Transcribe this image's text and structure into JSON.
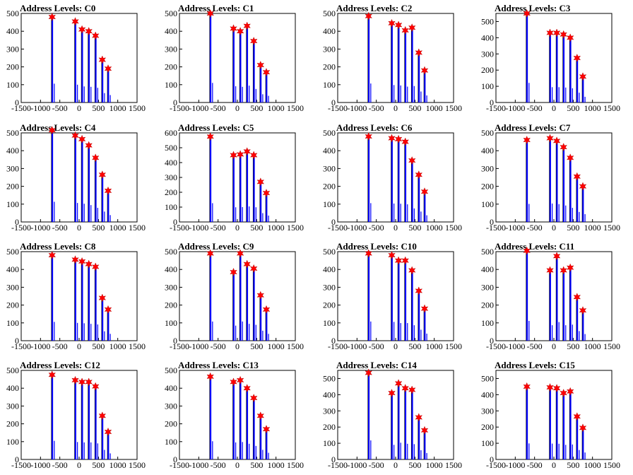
{
  "colors": {
    "hist": "#0000ff",
    "marker": "#ff0000",
    "frame": "#000000"
  },
  "chart_data": [
    {
      "type": "bar",
      "title": "Address Levels: C0",
      "xlim": [
        -1500,
        1500
      ],
      "ylim": [
        0,
        500
      ],
      "xticks": [
        "-1500",
        "-1000",
        "-500",
        "0",
        "500",
        "1000",
        "1500"
      ],
      "yticks": [
        "0",
        "100",
        "200",
        "300",
        "400",
        "500"
      ],
      "peaks": [
        {
          "x": -700,
          "y": 480
        },
        {
          "x": -100,
          "y": 455
        },
        {
          "x": 75,
          "y": 410
        },
        {
          "x": 250,
          "y": 400
        },
        {
          "x": 425,
          "y": 375
        },
        {
          "x": 600,
          "y": 240
        },
        {
          "x": 750,
          "y": 190
        }
      ]
    },
    {
      "type": "bar",
      "title": "Address Levels: C1",
      "xlim": [
        -1500,
        1500
      ],
      "ylim": [
        0,
        500
      ],
      "xticks": [
        "-1500",
        "-1000",
        "-500",
        "0",
        "500",
        "1000",
        "1500"
      ],
      "yticks": [
        "0",
        "100",
        "200",
        "300",
        "400",
        "500"
      ],
      "peaks": [
        {
          "x": -700,
          "y": 500
        },
        {
          "x": -100,
          "y": 415
        },
        {
          "x": 75,
          "y": 400
        },
        {
          "x": 250,
          "y": 430
        },
        {
          "x": 425,
          "y": 345
        },
        {
          "x": 600,
          "y": 210
        },
        {
          "x": 750,
          "y": 170
        }
      ]
    },
    {
      "type": "bar",
      "title": "Address Levels: C2",
      "xlim": [
        -1500,
        1500
      ],
      "ylim": [
        0,
        500
      ],
      "xticks": [
        "-1500",
        "-1000",
        "-500",
        "0",
        "500",
        "1000",
        "1500"
      ],
      "yticks": [
        "0",
        "100",
        "200",
        "300",
        "400",
        "500"
      ],
      "peaks": [
        {
          "x": -700,
          "y": 485
        },
        {
          "x": -100,
          "y": 445
        },
        {
          "x": 75,
          "y": 435
        },
        {
          "x": 250,
          "y": 405
        },
        {
          "x": 425,
          "y": 420
        },
        {
          "x": 600,
          "y": 280
        },
        {
          "x": 750,
          "y": 180
        }
      ]
    },
    {
      "type": "bar",
      "title": "Address Levels: C3",
      "xlim": [
        -1500,
        1500
      ],
      "ylim": [
        0,
        550
      ],
      "xticks": [
        "-1500",
        "-1000",
        "-500",
        "0",
        "500",
        "1000",
        "1500"
      ],
      "yticks": [
        "0",
        "100",
        "200",
        "300",
        "400",
        "500"
      ],
      "peaks": [
        {
          "x": -700,
          "y": 550
        },
        {
          "x": -100,
          "y": 430
        },
        {
          "x": 75,
          "y": 430
        },
        {
          "x": 250,
          "y": 420
        },
        {
          "x": 425,
          "y": 400
        },
        {
          "x": 600,
          "y": 275
        },
        {
          "x": 750,
          "y": 160
        }
      ]
    },
    {
      "type": "bar",
      "title": "Address Levels: C4",
      "xlim": [
        -1500,
        1500
      ],
      "ylim": [
        0,
        500
      ],
      "xticks": [
        "-1500",
        "-1000",
        "-500",
        "0",
        "500",
        "1000",
        "1500"
      ],
      "yticks": [
        "0",
        "100",
        "200",
        "300",
        "400",
        "500"
      ],
      "peaks": [
        {
          "x": -700,
          "y": 515
        },
        {
          "x": -100,
          "y": 485
        },
        {
          "x": 75,
          "y": 465
        },
        {
          "x": 250,
          "y": 430
        },
        {
          "x": 425,
          "y": 360
        },
        {
          "x": 600,
          "y": 265
        },
        {
          "x": 750,
          "y": 175
        }
      ]
    },
    {
      "type": "bar",
      "title": "Address Levels: C5",
      "xlim": [
        -1500,
        1500
      ],
      "ylim": [
        0,
        600
      ],
      "xticks": [
        "-1500",
        "-1000",
        "-500",
        "0",
        "500",
        "1000",
        "1500"
      ],
      "yticks": [
        "0",
        "100",
        "200",
        "300",
        "400",
        "500",
        "600"
      ],
      "peaks": [
        {
          "x": -700,
          "y": 575
        },
        {
          "x": -100,
          "y": 450
        },
        {
          "x": 75,
          "y": 455
        },
        {
          "x": 250,
          "y": 475
        },
        {
          "x": 425,
          "y": 450
        },
        {
          "x": 600,
          "y": 270
        },
        {
          "x": 750,
          "y": 195
        }
      ]
    },
    {
      "type": "bar",
      "title": "Address Levels: C6",
      "xlim": [
        -1500,
        1500
      ],
      "ylim": [
        0,
        500
      ],
      "xticks": [
        "-1500",
        "-1000",
        "-500",
        "0",
        "500",
        "1000",
        "1500"
      ],
      "yticks": [
        "0",
        "100",
        "200",
        "300",
        "400",
        "500"
      ],
      "peaks": [
        {
          "x": -700,
          "y": 480
        },
        {
          "x": -100,
          "y": 470
        },
        {
          "x": 75,
          "y": 465
        },
        {
          "x": 250,
          "y": 450
        },
        {
          "x": 425,
          "y": 345
        },
        {
          "x": 600,
          "y": 265
        },
        {
          "x": 750,
          "y": 170
        }
      ]
    },
    {
      "type": "bar",
      "title": "Address Levels: C7",
      "xlim": [
        -1500,
        1500
      ],
      "ylim": [
        0,
        500
      ],
      "xticks": [
        "-1500",
        "-1000",
        "-500",
        "0",
        "500",
        "1000",
        "1500"
      ],
      "yticks": [
        "0",
        "100",
        "200",
        "300",
        "400",
        "500"
      ],
      "peaks": [
        {
          "x": -700,
          "y": 460
        },
        {
          "x": -100,
          "y": 470
        },
        {
          "x": 75,
          "y": 455
        },
        {
          "x": 250,
          "y": 420
        },
        {
          "x": 425,
          "y": 360
        },
        {
          "x": 600,
          "y": 255
        },
        {
          "x": 750,
          "y": 200
        }
      ]
    },
    {
      "type": "bar",
      "title": "Address Levels: C8",
      "xlim": [
        -1500,
        1500
      ],
      "ylim": [
        0,
        500
      ],
      "xticks": [
        "-1500",
        "-1000",
        "-500",
        "0",
        "500",
        "1000",
        "1500"
      ],
      "yticks": [
        "0",
        "100",
        "200",
        "300",
        "400",
        "500"
      ],
      "peaks": [
        {
          "x": -700,
          "y": 480
        },
        {
          "x": -100,
          "y": 455
        },
        {
          "x": 75,
          "y": 445
        },
        {
          "x": 250,
          "y": 430
        },
        {
          "x": 425,
          "y": 415
        },
        {
          "x": 600,
          "y": 240
        },
        {
          "x": 750,
          "y": 175
        }
      ]
    },
    {
      "type": "bar",
      "title": "Address Levels: C9",
      "xlim": [
        -1500,
        1500
      ],
      "ylim": [
        0,
        500
      ],
      "xticks": [
        "-1500",
        "-1000",
        "-500",
        "0",
        "500",
        "1000",
        "1500"
      ],
      "yticks": [
        "0",
        "100",
        "200",
        "300",
        "400",
        "500"
      ],
      "peaks": [
        {
          "x": -700,
          "y": 490
        },
        {
          "x": -100,
          "y": 385
        },
        {
          "x": 75,
          "y": 490
        },
        {
          "x": 250,
          "y": 430
        },
        {
          "x": 425,
          "y": 405
        },
        {
          "x": 600,
          "y": 255
        },
        {
          "x": 750,
          "y": 175
        }
      ]
    },
    {
      "type": "bar",
      "title": "Address Levels: C10",
      "xlim": [
        -1500,
        1500
      ],
      "ylim": [
        0,
        500
      ],
      "xticks": [
        "-1500",
        "-1000",
        "-500",
        "0",
        "500",
        "1000",
        "1500"
      ],
      "yticks": [
        "0",
        "100",
        "200",
        "300",
        "400",
        "500"
      ],
      "peaks": [
        {
          "x": -700,
          "y": 490
        },
        {
          "x": -100,
          "y": 480
        },
        {
          "x": 75,
          "y": 450
        },
        {
          "x": 250,
          "y": 450
        },
        {
          "x": 425,
          "y": 395
        },
        {
          "x": 600,
          "y": 280
        },
        {
          "x": 750,
          "y": 180
        }
      ]
    },
    {
      "type": "bar",
      "title": "Address Levels: C11",
      "xlim": [
        -1500,
        1500
      ],
      "ylim": [
        0,
        500
      ],
      "xticks": [
        "-1500",
        "-1000",
        "-500",
        "0",
        "500",
        "1000",
        "1500"
      ],
      "yticks": [
        "0",
        "100",
        "200",
        "300",
        "400",
        "500"
      ],
      "peaks": [
        {
          "x": -700,
          "y": 505
        },
        {
          "x": -100,
          "y": 395
        },
        {
          "x": 75,
          "y": 475
        },
        {
          "x": 250,
          "y": 395
        },
        {
          "x": 425,
          "y": 410
        },
        {
          "x": 600,
          "y": 245
        },
        {
          "x": 750,
          "y": 170
        }
      ]
    },
    {
      "type": "bar",
      "title": "Address Levels: C12",
      "xlim": [
        -1500,
        1500
      ],
      "ylim": [
        0,
        500
      ],
      "xticks": [
        "-1500",
        "-1000",
        "-500",
        "0",
        "500",
        "1000",
        "1500"
      ],
      "yticks": [
        "0",
        "100",
        "200",
        "300",
        "400",
        "500"
      ],
      "peaks": [
        {
          "x": -700,
          "y": 475
        },
        {
          "x": -100,
          "y": 445
        },
        {
          "x": 75,
          "y": 435
        },
        {
          "x": 250,
          "y": 435
        },
        {
          "x": 425,
          "y": 410
        },
        {
          "x": 600,
          "y": 245
        },
        {
          "x": 750,
          "y": 155
        }
      ]
    },
    {
      "type": "bar",
      "title": "Address Levels: C13",
      "xlim": [
        -1500,
        1500
      ],
      "ylim": [
        0,
        500
      ],
      "xticks": [
        "-1500",
        "-1000",
        "-500",
        "0",
        "500",
        "1000",
        "1500"
      ],
      "yticks": [
        "0",
        "100",
        "200",
        "300",
        "400",
        "500"
      ],
      "peaks": [
        {
          "x": -700,
          "y": 465
        },
        {
          "x": -100,
          "y": 435
        },
        {
          "x": 75,
          "y": 445
        },
        {
          "x": 250,
          "y": 400
        },
        {
          "x": 425,
          "y": 345
        },
        {
          "x": 600,
          "y": 245
        },
        {
          "x": 750,
          "y": 170
        }
      ]
    },
    {
      "type": "bar",
      "title": "Address Levels: C14",
      "xlim": [
        -1500,
        1500
      ],
      "ylim": [
        0,
        550
      ],
      "xticks": [
        "-1500",
        "-1000",
        "-500",
        "0",
        "500",
        "1000",
        "1500"
      ],
      "yticks": [
        "0",
        "100",
        "200",
        "300",
        "400",
        "500"
      ],
      "peaks": [
        {
          "x": -700,
          "y": 535
        },
        {
          "x": -100,
          "y": 410
        },
        {
          "x": 75,
          "y": 470
        },
        {
          "x": 250,
          "y": 440
        },
        {
          "x": 425,
          "y": 430
        },
        {
          "x": 600,
          "y": 260
        },
        {
          "x": 750,
          "y": 180
        }
      ]
    },
    {
      "type": "bar",
      "title": "Address Levels: C15",
      "xlim": [
        -1500,
        1500
      ],
      "ylim": [
        0,
        550
      ],
      "xticks": [
        "-1500",
        "-1000",
        "-500",
        "0",
        "500",
        "1000",
        "1500"
      ],
      "yticks": [
        "0",
        "100",
        "200",
        "300",
        "400",
        "500"
      ],
      "peaks": [
        {
          "x": -700,
          "y": 450
        },
        {
          "x": -100,
          "y": 445
        },
        {
          "x": 75,
          "y": 440
        },
        {
          "x": 250,
          "y": 410
        },
        {
          "x": 425,
          "y": 420
        },
        {
          "x": 600,
          "y": 265
        },
        {
          "x": 750,
          "y": 195
        }
      ]
    }
  ]
}
